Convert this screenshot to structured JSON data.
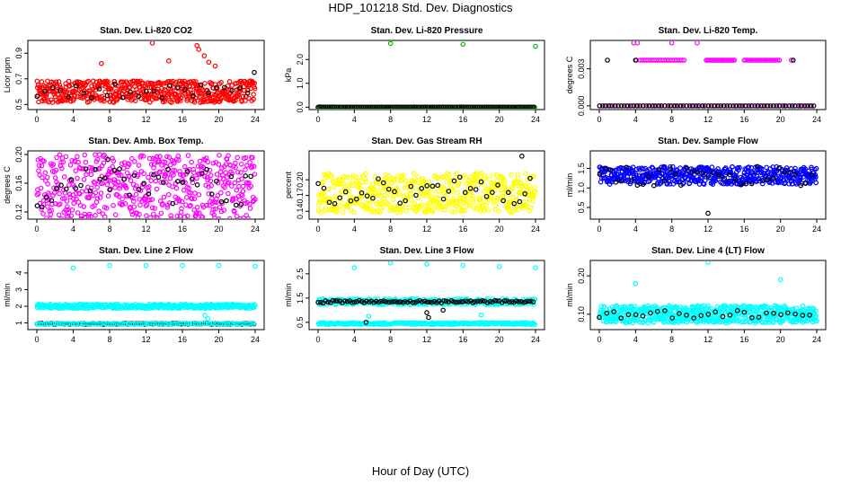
{
  "title": "HDP_101218  Std. Dev. Diagnostics",
  "xlabel": "Hour of Day (UTC)",
  "chart_data": [
    {
      "type": "scatter",
      "title": "Stan. Dev. Li-820 CO2",
      "ylabel": "Licor ppm",
      "xlim": [
        0,
        24
      ],
      "xticks": [
        0,
        4,
        8,
        12,
        16,
        20,
        24
      ],
      "ylim": [
        0.46,
        1.0
      ],
      "yticks": [
        0.5,
        0.7,
        0.9
      ],
      "ytick_labels": [
        "0.5",
        "0.7",
        "0.9"
      ],
      "color": "#ff0000",
      "series": [
        {
          "name": "colored",
          "base": 0.6,
          "spread": 0.17,
          "count": 520,
          "outliers": [
            [
              12.7,
              0.98
            ],
            [
              17.6,
              0.96
            ],
            [
              17.8,
              0.93
            ],
            [
              18.4,
              0.88
            ],
            [
              18.9,
              0.83
            ],
            [
              7.1,
              0.82
            ],
            [
              14.5,
              0.84
            ],
            [
              19.6,
              0.8
            ]
          ]
        },
        {
          "name": "black",
          "base": 0.6,
          "spread": 0.12,
          "count": 28,
          "outliers": [
            [
              23.9,
              0.75
            ]
          ]
        }
      ]
    },
    {
      "type": "scatter",
      "title": "Stan. Dev. Li-820 Pressure",
      "ylabel": "kPa",
      "xlim": [
        0,
        24
      ],
      "xticks": [
        0,
        4,
        8,
        12,
        16,
        20,
        24
      ],
      "ylim": [
        -0.1,
        2.8
      ],
      "yticks": [
        0.0,
        1.0,
        2.0
      ],
      "ytick_labels": [
        "0.0",
        "1.0",
        "2.0"
      ],
      "color": "#00bb00",
      "series": [
        {
          "name": "colored",
          "base": 0.0,
          "spread": 0.01,
          "count": 240,
          "outliers": [
            [
              8.0,
              2.67
            ],
            [
              16.0,
              2.64
            ],
            [
              24.0,
              2.55
            ],
            [
              0.2,
              0.02
            ]
          ]
        },
        {
          "name": "black",
          "base": 0.0,
          "spread": 0.01,
          "count": 120,
          "outliers": []
        }
      ]
    },
    {
      "type": "scatter",
      "title": "Stan. Dev. Li-820 Temp.",
      "ylabel": "degrees C",
      "xlim": [
        0,
        24
      ],
      "xticks": [
        0,
        4,
        8,
        12,
        16,
        20,
        24
      ],
      "ylim": [
        -0.0003,
        0.0053
      ],
      "yticks": [
        0.0,
        0.003
      ],
      "ytick_labels": [
        "0.000",
        "0.003"
      ],
      "color": "#ff00ff",
      "series": [
        {
          "name": "colored",
          "base": 0.0,
          "spread": 0.0,
          "count": 40,
          "outliers": [
            [
              3.8,
              0.0051
            ],
            [
              4.2,
              0.0051
            ],
            [
              8.0,
              0.0051
            ],
            [
              10.8,
              0.0051
            ],
            [
              4.1,
              0.0037
            ],
            [
              21.2,
              0.0037
            ]
          ],
          "band": {
            "y": 0.0037,
            "ranges": [
              [
                4.5,
                9.5
              ],
              [
                11.8,
                15.0
              ],
              [
                16.0,
                20.0
              ]
            ],
            "count": 34
          }
        },
        {
          "name": "black",
          "base": 0.0,
          "spread": 0.0,
          "count": 70,
          "outliers": [
            [
              0.9,
              0.0037
            ],
            [
              4.0,
              0.0037
            ],
            [
              21.4,
              0.0037
            ]
          ]
        }
      ]
    },
    {
      "type": "scatter",
      "title": "Stan. Dev. Amb. Box Temp.",
      "ylabel": "degrees C",
      "xlim": [
        0,
        24
      ],
      "xticks": [
        0,
        4,
        8,
        12,
        16,
        20,
        24
      ],
      "ylim": [
        0.11,
        0.205
      ],
      "yticks": [
        0.12,
        0.16,
        0.2
      ],
      "ytick_labels": [
        "0.12",
        "0.16",
        "0.20"
      ],
      "color": "#ff00ff",
      "series": [
        {
          "name": "colored",
          "base": 0.155,
          "spread": 0.09,
          "count": 520,
          "outliers": []
        },
        {
          "name": "black",
          "base": 0.15,
          "spread": 0.06,
          "count": 45,
          "outliers": [
            [
              7.8,
              0.193
            ]
          ]
        }
      ]
    },
    {
      "type": "scatter",
      "title": "Stan. Dev. Gas Stream RH",
      "ylabel": "percent",
      "xlim": [
        0,
        24
      ],
      "xticks": [
        0,
        4,
        8,
        12,
        16,
        20,
        24
      ],
      "ylim": [
        0.125,
        0.255
      ],
      "yticks": [
        0.14,
        0.17,
        0.2
      ],
      "ytick_labels": [
        "0.14",
        "0.17",
        "0.20"
      ],
      "color": "#ffff00",
      "series": [
        {
          "name": "colored",
          "base": 0.175,
          "spread": 0.075,
          "count": 520,
          "outliers": []
        },
        {
          "name": "black",
          "base": 0.175,
          "spread": 0.06,
          "count": 40,
          "outliers": [
            [
              22.5,
              0.245
            ]
          ]
        }
      ]
    },
    {
      "type": "scatter",
      "title": "Stan. Dev. Sample Flow",
      "ylabel": "ml/min",
      "xlim": [
        0,
        24
      ],
      "xticks": [
        0,
        4,
        8,
        12,
        16,
        20,
        24
      ],
      "ylim": [
        0.2,
        1.95
      ],
      "yticks": [
        0.5,
        1.0,
        1.5
      ],
      "ytick_labels": [
        "0.5",
        "1.0",
        "1.5"
      ],
      "color": "#0000ff",
      "series": [
        {
          "name": "colored",
          "base": 1.32,
          "spread": 0.45,
          "count": 540,
          "outliers": []
        },
        {
          "name": "black",
          "base": 1.3,
          "spread": 0.5,
          "count": 40,
          "outliers": [
            [
              12.0,
              0.35
            ]
          ]
        }
      ]
    },
    {
      "type": "scatter",
      "title": "Stan. Dev. Line 2 Flow",
      "ylabel": "ml/min",
      "xlim": [
        0,
        24
      ],
      "xticks": [
        0,
        4,
        8,
        12,
        16,
        20,
        24
      ],
      "ylim": [
        0.6,
        4.75
      ],
      "yticks": [
        1,
        2,
        3,
        4
      ],
      "ytick_labels": [
        "1",
        "2",
        "3",
        "4"
      ],
      "color": "#00ffff",
      "series": [
        {
          "name": "colored",
          "base": 2.0,
          "spread": 0.25,
          "count": 430,
          "outliers": [
            [
              4.0,
              4.3
            ],
            [
              8.0,
              4.45
            ],
            [
              12.0,
              4.45
            ],
            [
              16.0,
              4.45
            ],
            [
              20.0,
              4.45
            ],
            [
              24.0,
              4.4
            ],
            [
              18.5,
              1.45
            ],
            [
              18.8,
              1.25
            ]
          ]
        },
        {
          "name": "black",
          "base": 0.95,
          "spread": 0.05,
          "count": 130,
          "outliers": []
        },
        {
          "name": "colored-low",
          "base": 0.95,
          "spread": 0.06,
          "count": 120,
          "outliers": []
        }
      ]
    },
    {
      "type": "scatter",
      "title": "Stan. Dev. Line 3 Flow",
      "ylabel": "ml/min",
      "xlim": [
        0,
        24
      ],
      "xticks": [
        0,
        4,
        8,
        12,
        16,
        20,
        24
      ],
      "ylim": [
        0.2,
        3.05
      ],
      "yticks": [
        0.5,
        1.5,
        2.5
      ],
      "ytick_labels": [
        "0.5",
        "1.5",
        "2.5"
      ],
      "color": "#00ffff",
      "series": [
        {
          "name": "colored",
          "base": 1.35,
          "spread": 0.25,
          "count": 300,
          "outliers": [
            [
              4.0,
              2.75
            ],
            [
              8.0,
              2.95
            ],
            [
              12.0,
              2.9
            ],
            [
              16.0,
              2.85
            ],
            [
              20.0,
              2.8
            ],
            [
              24.0,
              2.75
            ],
            [
              5.6,
              0.75
            ],
            [
              18.0,
              0.8
            ]
          ]
        },
        {
          "name": "colored-low",
          "base": 0.45,
          "spread": 0.08,
          "count": 260,
          "outliers": []
        },
        {
          "name": "black",
          "base": 1.35,
          "spread": 0.1,
          "count": 90,
          "outliers": [
            [
              5.3,
              0.5
            ],
            [
              12.0,
              0.9
            ],
            [
              12.2,
              0.7
            ],
            [
              13.8,
              1.0
            ]
          ]
        }
      ]
    },
    {
      "type": "scatter",
      "title": "Stan. Dev. Line 4 (LT) Flow",
      "ylabel": "ml/min",
      "xlim": [
        0,
        24
      ],
      "xticks": [
        0,
        4,
        8,
        12,
        16,
        20,
        24
      ],
      "ylim": [
        0.06,
        0.24
      ],
      "yticks": [
        0.1,
        0.2
      ],
      "ytick_labels": [
        "0.10",
        "0.20"
      ],
      "color": "#00ffff",
      "series": [
        {
          "name": "colored",
          "base": 0.1,
          "spread": 0.045,
          "count": 600,
          "outliers": [
            [
              12.0,
              0.235
            ],
            [
              4.0,
              0.18
            ],
            [
              20.0,
              0.19
            ]
          ]
        },
        {
          "name": "black",
          "base": 0.1,
          "spread": 0.02,
          "count": 30,
          "outliers": []
        }
      ]
    }
  ]
}
